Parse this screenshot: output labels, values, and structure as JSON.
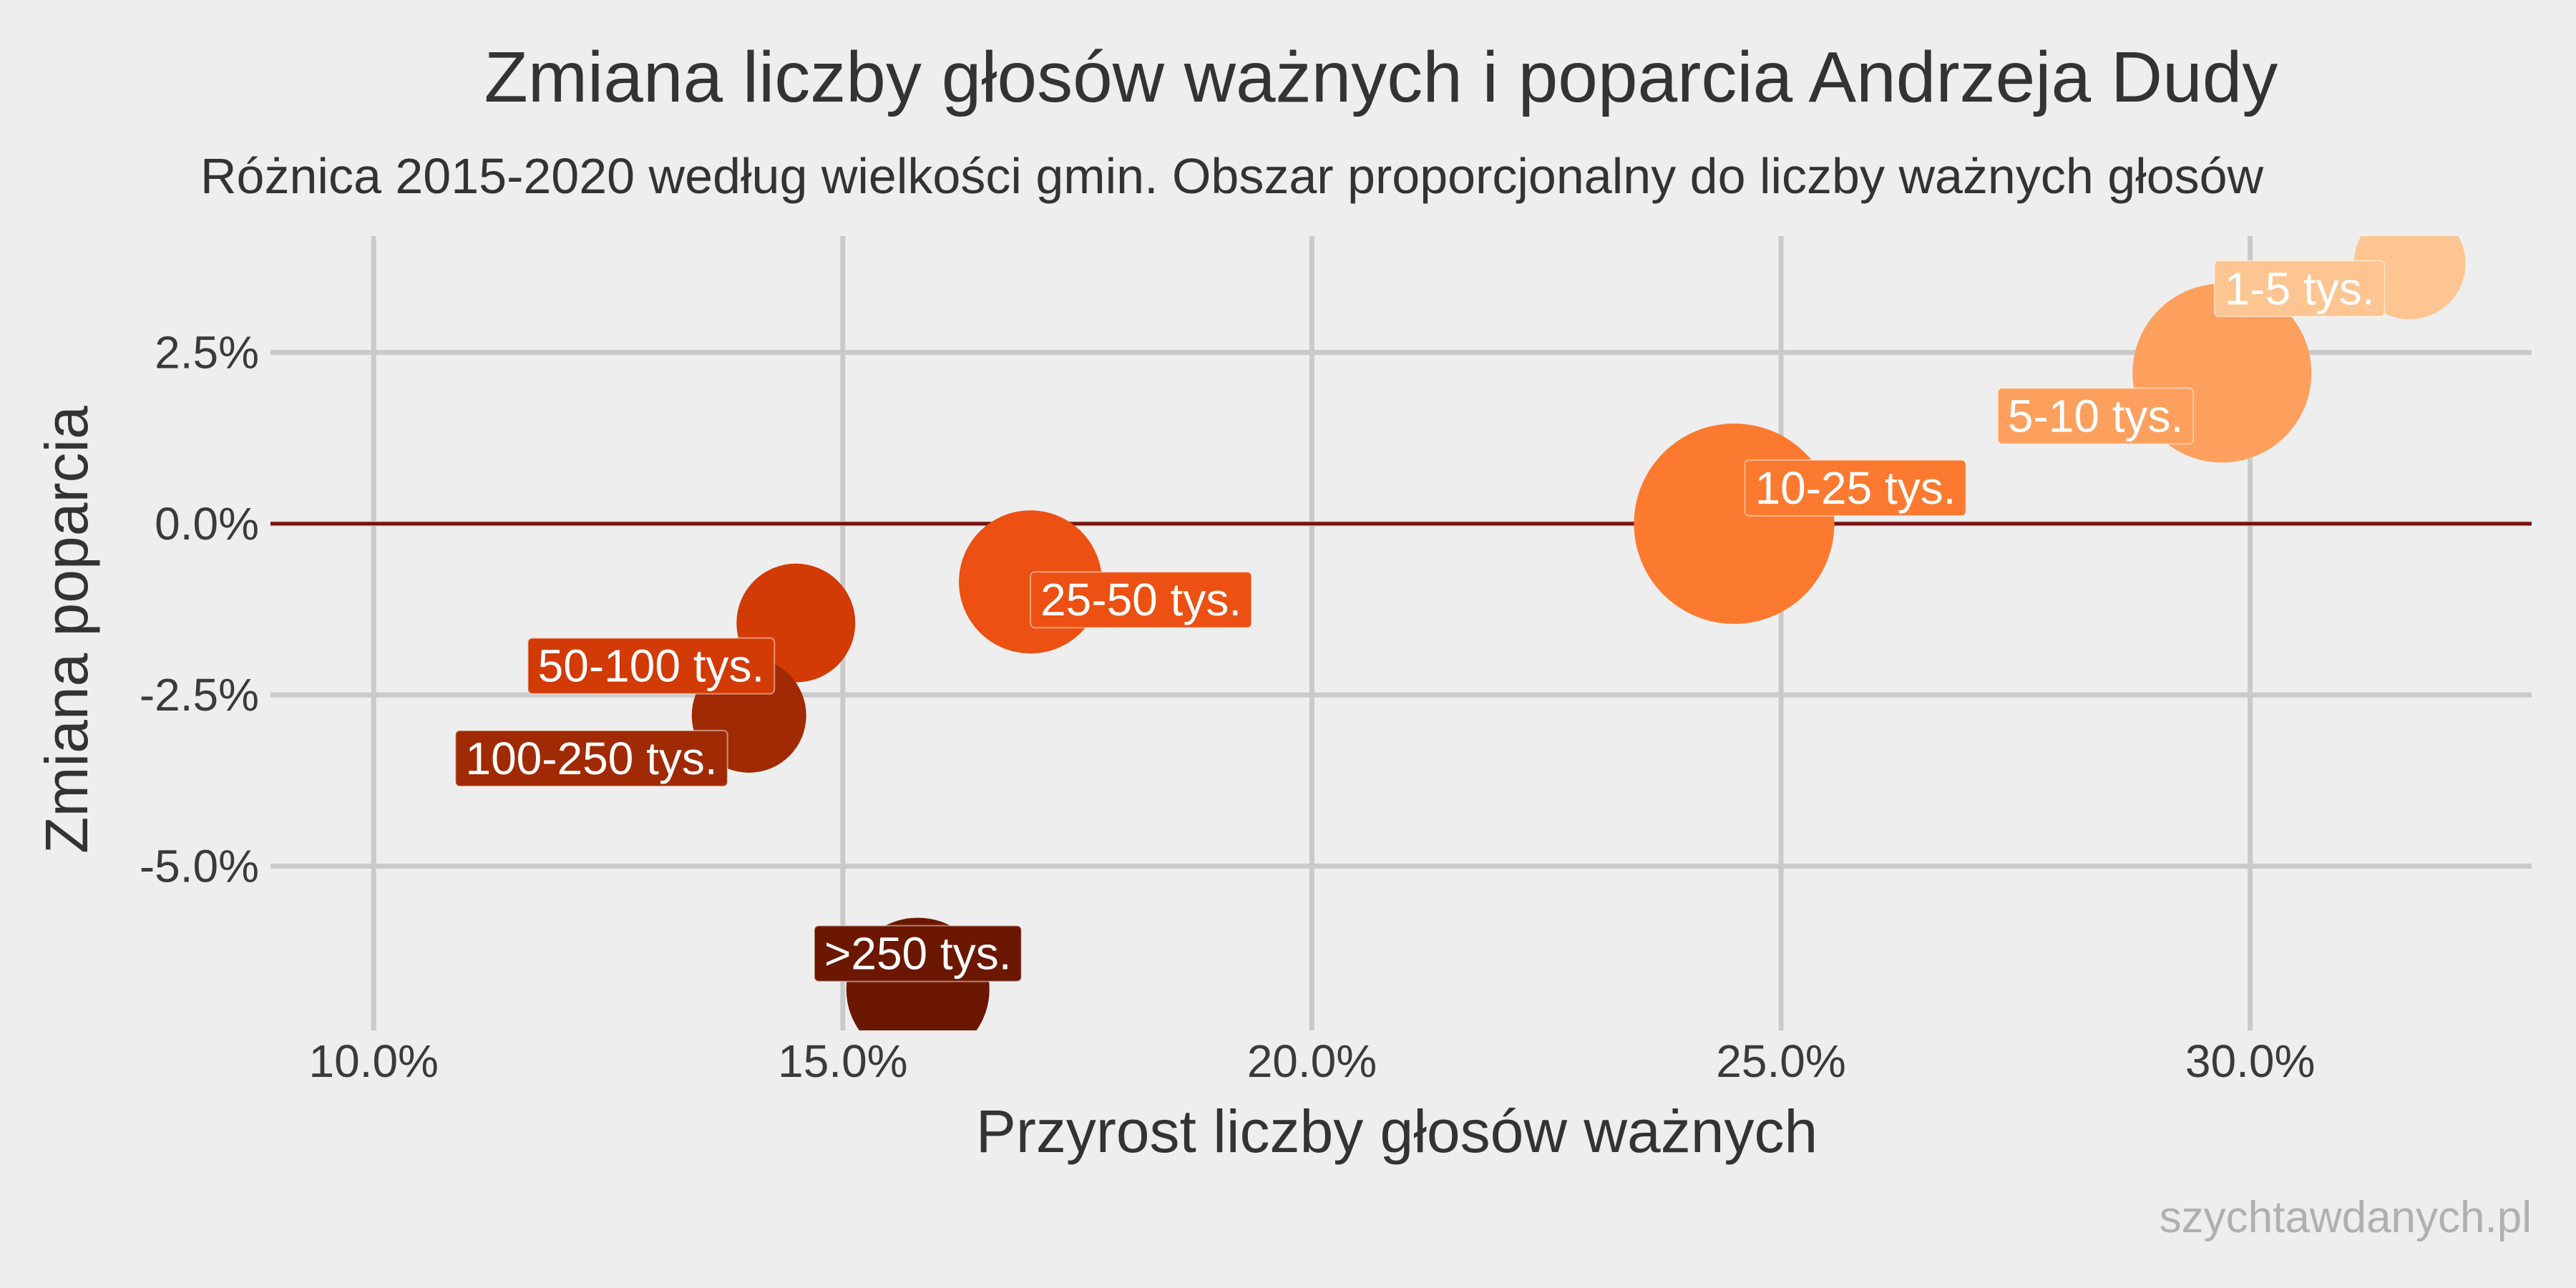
{
  "chart_data": {
    "type": "scatter",
    "title": "Zmiana liczby głosów ważnych i poparcia Andrzeja Dudy",
    "subtitle": "Różnica 2015-2020 według wielkości gmin. Obszar proporcjonalny do liczby ważnych głosów",
    "xlabel": "Przyrost liczby głosów ważnych",
    "ylabel": "Zmiana poparcia",
    "xlim": [
      8.9,
      33.0
    ],
    "ylim": [
      -7.4,
      4.2
    ],
    "x_ticks": [
      10,
      15,
      20,
      25,
      30
    ],
    "x_tick_labels": [
      "10.0%",
      "15.0%",
      "20.0%",
      "25.0%",
      "30.0%"
    ],
    "y_ticks": [
      2.5,
      0,
      -2.5,
      -5
    ],
    "y_tick_labels": [
      "2.5%",
      "0.0%",
      "-2.5%",
      "-5.0%"
    ],
    "grid": true,
    "reference_line": {
      "y": 0,
      "color": "#7a1010"
    },
    "points": [
      {
        "label": "1-5 tys.",
        "x": 31.7,
        "y": 3.8,
        "color": "#fdc591",
        "label_side": "left"
      },
      {
        "label": "5-10 tys.",
        "x": 29.7,
        "y": 2.2,
        "color": "#fda05e",
        "label_side": "left"
      },
      {
        "label": "10-25 tys.",
        "x": 24.5,
        "y": 0.0,
        "color": "#fb7a30",
        "label_side": "right"
      },
      {
        "label": "25-50 tys.",
        "x": 17.0,
        "y": -0.85,
        "color": "#ec5012",
        "label_side": "right"
      },
      {
        "label": "50-100 tys.",
        "x": 14.5,
        "y": -1.45,
        "color": "#d23a06",
        "label_side": "left"
      },
      {
        "label": "100-250 tys.",
        "x": 14.0,
        "y": -2.8,
        "color": "#a02a04",
        "label_side": "left"
      },
      {
        "label": ">250 tys.",
        "x": 15.8,
        "y": -6.8,
        "color": "#6b1702",
        "label_side": "center"
      }
    ]
  },
  "credit": "szychtawdanych.pl"
}
